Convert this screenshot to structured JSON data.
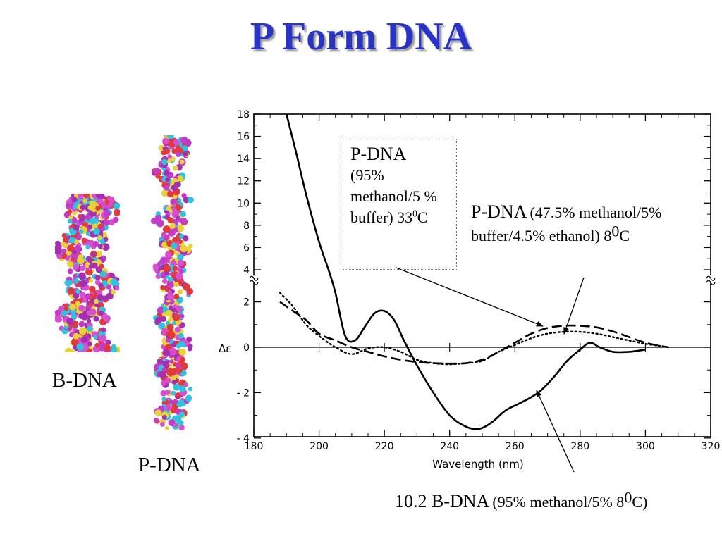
{
  "slide": {
    "title": "P Form DNA",
    "labels": {
      "bdna": "B-DNA",
      "pdna": "P-DNA"
    }
  },
  "chart_data": {
    "type": "line",
    "xlabel": "Wavelength (nm)",
    "ylabel": "Δε",
    "xlim": [
      180,
      320
    ],
    "ylim": [
      -4,
      18
    ],
    "y_axis_break": "between 2 and 4",
    "x_ticks": [
      180,
      200,
      220,
      240,
      260,
      280,
      300,
      320
    ],
    "y_ticks": [
      -4,
      -2,
      0,
      2,
      4,
      6,
      8,
      10,
      12,
      14,
      16,
      18
    ],
    "x_tick_labels": [
      "180",
      "200",
      "220",
      "240",
      "260",
      "280",
      "300",
      "320"
    ],
    "y_tick_labels": [
      "- 4",
      "- 2",
      "0",
      "2",
      "4",
      "6",
      "8",
      "10",
      "12",
      "14",
      "16",
      "18"
    ],
    "series": [
      {
        "style": "solid",
        "x": [
          190,
          193,
          196,
          200,
          203,
          205,
          208,
          211,
          214,
          217,
          220,
          223,
          226,
          230,
          235,
          240,
          245,
          249,
          253,
          257,
          261,
          265,
          268,
          272,
          276,
          280,
          283,
          286,
          290,
          295,
          300
        ],
        "y": [
          18,
          14.5,
          10.8,
          6.5,
          3.9,
          2.4,
          0.5,
          0.3,
          0.9,
          1.5,
          1.6,
          1.2,
          0.3,
          -0.8,
          -2.0,
          -3.0,
          -3.5,
          -3.6,
          -3.3,
          -2.8,
          -2.5,
          -2.2,
          -1.9,
          -1.3,
          -0.6,
          -0.1,
          0.2,
          0.0,
          -0.2,
          -0.2,
          -0.1
        ]
      },
      {
        "style": "dashed",
        "x": [
          188,
          192,
          196,
          200,
          205,
          210,
          215,
          220,
          225,
          230,
          235,
          240,
          245,
          250,
          255,
          260,
          265,
          270,
          275,
          280,
          285,
          290,
          295,
          300,
          305,
          307
        ],
        "y": [
          2.0,
          1.6,
          1.2,
          0.6,
          0.3,
          0.0,
          -0.2,
          -0.4,
          -0.55,
          -0.65,
          -0.7,
          -0.72,
          -0.7,
          -0.55,
          -0.2,
          0.2,
          0.6,
          0.85,
          0.95,
          0.95,
          0.88,
          0.7,
          0.45,
          0.2,
          0.05,
          0.0
        ]
      },
      {
        "style": "dotted",
        "x": [
          188,
          192,
          196,
          200,
          205,
          210,
          215,
          220,
          225,
          230,
          235,
          240,
          245,
          250,
          255,
          260,
          265,
          270,
          275,
          280,
          285,
          290,
          295,
          300,
          305,
          307
        ],
        "y": [
          2.4,
          1.8,
          1.0,
          0.5,
          0.0,
          -0.3,
          -0.05,
          0.0,
          -0.2,
          -0.55,
          -0.7,
          -0.75,
          -0.7,
          -0.6,
          -0.2,
          0.1,
          0.4,
          0.6,
          0.68,
          0.68,
          0.6,
          0.45,
          0.3,
          0.15,
          0.05,
          0.0
        ]
      }
    ],
    "annotations": [
      {
        "id": "box",
        "head": "P-DNA",
        "body": "(95% methanol/5 % buffer) 33",
        "sup": "0",
        "tail": "C"
      },
      {
        "id": "right",
        "head": "P-DNA",
        "body": "(47.5% methanol/5% buffer/4.5% ethanol) 8",
        "sup": "0",
        "tail": "C"
      },
      {
        "id": "bottom",
        "head": "10.2 B-DNA",
        "body": "(95% methanol/5% 8",
        "sup": "0",
        "tail": "C)"
      }
    ]
  }
}
